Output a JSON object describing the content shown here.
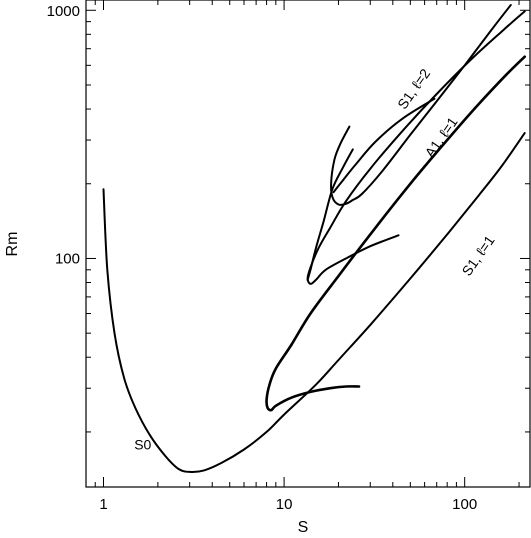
{
  "chart_data": {
    "type": "line",
    "title": "",
    "xlabel": "S",
    "ylabel": "Rm",
    "xscale": "log",
    "yscale": "log",
    "xlim": [
      0.8,
      230
    ],
    "ylim": [
      12,
      1100
    ],
    "x_ticks": [
      1,
      10,
      100
    ],
    "x_tick_labels": [
      "1",
      "10",
      "100"
    ],
    "y_ticks": [
      100,
      1000
    ],
    "y_tick_labels": [
      "100",
      "1000"
    ],
    "grid": false,
    "legend": "none",
    "line_color": "#000000",
    "series": [
      {
        "name": "S0",
        "label_at": [
          1.65,
          17.0
        ],
        "label_rotation": 0,
        "points": [
          [
            1.0,
            190
          ],
          [
            1.05,
            90
          ],
          [
            1.15,
            50
          ],
          [
            1.3,
            33
          ],
          [
            1.5,
            25
          ],
          [
            1.8,
            19.5
          ],
          [
            2.2,
            16
          ],
          [
            2.6,
            14.2
          ],
          [
            3.0,
            13.8
          ],
          [
            3.6,
            14
          ],
          [
            4.5,
            15
          ],
          [
            6.0,
            17
          ],
          [
            8.0,
            20
          ],
          [
            10.0,
            23.5
          ],
          [
            15.0,
            31
          ],
          [
            20.0,
            39
          ],
          [
            30.0,
            54
          ],
          [
            50.0,
            83
          ],
          [
            80.0,
            125
          ],
          [
            120.0,
            180
          ],
          [
            160.0,
            235
          ],
          [
            215.0,
            320
          ]
        ]
      },
      {
        "name": "S1, ℓ=1",
        "label_at": [
          125,
          100
        ],
        "label_rotation": -55,
        "points": [
          [
            26.0,
            30.5
          ],
          [
            22.0,
            30.5
          ],
          [
            18.0,
            30.0
          ],
          [
            14.0,
            29.0
          ],
          [
            11.0,
            27.5
          ],
          [
            9.0,
            25.5
          ],
          [
            8.5,
            24.5
          ],
          [
            8.1,
            25.0
          ],
          [
            8.0,
            27.0
          ],
          [
            8.3,
            31.0
          ],
          [
            9.0,
            36.0
          ],
          [
            11.0,
            45.0
          ],
          [
            14.0,
            60.0
          ],
          [
            20.0,
            85.0
          ],
          [
            30.0,
            125.0
          ],
          [
            50.0,
            200.0
          ],
          [
            80.0,
            300.0
          ],
          [
            120.0,
            420.0
          ],
          [
            170.0,
            550.0
          ],
          [
            215.0,
            650.0
          ]
        ]
      },
      {
        "name": "A1, ℓ=1",
        "label_at": [
          78,
          300
        ],
        "label_rotation": -55,
        "points": [
          [
            43.0,
            124.0
          ],
          [
            30.0,
            112.0
          ],
          [
            22.0,
            100.0
          ],
          [
            17.0,
            90.0
          ],
          [
            15.0,
            82.0
          ],
          [
            14.0,
            79.0
          ],
          [
            13.5,
            83.0
          ],
          [
            14.0,
            92.0
          ],
          [
            15.5,
            110.0
          ],
          [
            18.0,
            133.0
          ],
          [
            22.0,
            170.0
          ],
          [
            30.0,
            230.0
          ],
          [
            45.0,
            325.0
          ],
          [
            70.0,
            460.0
          ],
          [
            110.0,
            640.0
          ],
          [
            160.0,
            820.0
          ],
          [
            215.0,
            990.0
          ]
        ]
      },
      {
        "name": "S1, ℓ=2",
        "label_at": [
          55,
          470
        ],
        "label_rotation": -55,
        "points": [
          [
            23.0,
            340.0
          ],
          [
            20.5,
            290.0
          ],
          [
            19.0,
            250.0
          ],
          [
            18.2,
            200.0
          ],
          [
            18.6,
            175.0
          ],
          [
            20.0,
            165.0
          ],
          [
            22.0,
            166.0
          ],
          [
            24.0,
            172.0
          ],
          [
            27.0,
            182.0
          ],
          [
            35.0,
            225.0
          ],
          [
            50.0,
            315.0
          ],
          [
            70.0,
            430.0
          ],
          [
            100.0,
            600.0
          ],
          [
            140.0,
            830.0
          ],
          [
            180.0,
            1050.0
          ]
        ]
      },
      {
        "name": "",
        "label_at": null,
        "label_rotation": 0,
        "points": [
          [
            24.0,
            275.0
          ],
          [
            21.0,
            230.0
          ],
          [
            18.5,
            190.0
          ],
          [
            16.5,
            140.0
          ],
          [
            15.0,
            110.0
          ],
          [
            14.0,
            90.0
          ],
          [
            13.5,
            82.0
          ]
        ]
      },
      {
        "name": "",
        "label_at": null,
        "label_rotation": 0,
        "points": [
          [
            18.8,
            185.0
          ],
          [
            21.0,
            205.0
          ],
          [
            25.0,
            240.0
          ],
          [
            32.0,
            295.0
          ],
          [
            45.0,
            365.0
          ],
          [
            68.0,
            440.0
          ]
        ]
      }
    ]
  }
}
